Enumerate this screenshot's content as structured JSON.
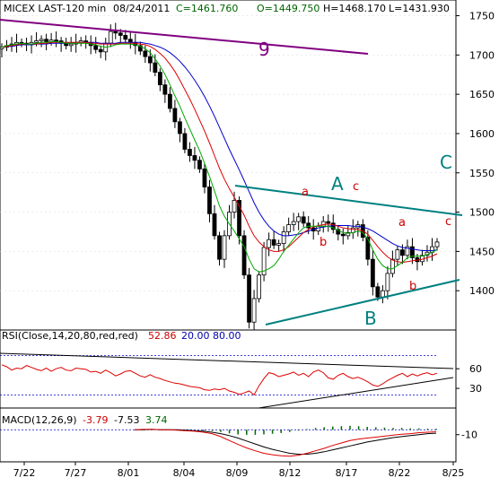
{
  "chart_data": {
    "type": "candlestick",
    "header": {
      "symbol": "MICEX LAST-120 min",
      "date": "08/24/2011",
      "close": "C=1461.760",
      "open": "O=1449.750",
      "high": "H=1468.170",
      "low": "L=1431.930"
    },
    "price_axis": {
      "ticks": [
        "1750",
        "1700",
        "1650",
        "1600",
        "1550",
        "1500",
        "1450",
        "1400"
      ],
      "ylim": [
        1350,
        1770
      ]
    },
    "x_ticks": [
      "7/22",
      "7/27",
      "8/01",
      "8/04",
      "8/09",
      "8/12",
      "8/17",
      "8/22",
      "8/25"
    ],
    "price_series": [
      1710,
      1712,
      1714,
      1716,
      1715,
      1713,
      1716,
      1718,
      1720,
      1717,
      1719,
      1718,
      1715,
      1712,
      1714,
      1716,
      1718,
      1716,
      1712,
      1707,
      1704,
      1715,
      1730,
      1728,
      1725,
      1720,
      1716,
      1712,
      1705,
      1698,
      1690,
      1678,
      1662,
      1650,
      1632,
      1615,
      1600,
      1580,
      1572,
      1566,
      1555,
      1532,
      1498,
      1470,
      1440,
      1470,
      1500,
      1515,
      1470,
      1420,
      1360,
      1390,
      1420,
      1455,
      1465,
      1458,
      1460,
      1475,
      1484,
      1488,
      1494,
      1486,
      1480,
      1476,
      1482,
      1488,
      1486,
      1478,
      1472,
      1470,
      1474,
      1480,
      1484,
      1468,
      1440,
      1405,
      1392,
      1400,
      1422,
      1440,
      1452,
      1445,
      1456,
      1442,
      1437,
      1445,
      1449,
      1456,
      1462
    ],
    "sma_green": [
      1710,
      1712,
      1713,
      1714,
      1715,
      1714,
      1714,
      1715,
      1716,
      1716,
      1717,
      1717,
      1716,
      1715,
      1715,
      1715,
      1715,
      1715,
      1714,
      1713,
      1711,
      1710,
      1711,
      1713,
      1714,
      1714,
      1714,
      1713,
      1711,
      1708,
      1703,
      1695,
      1686,
      1675,
      1662,
      1648,
      1635,
      1620,
      1606,
      1592,
      1578,
      1562,
      1545,
      1527,
      1508,
      1495,
      1485,
      1476,
      1466,
      1456,
      1440,
      1428,
      1424,
      1425,
      1428,
      1432,
      1440,
      1450,
      1458,
      1466,
      1474,
      1480,
      1482,
      1482,
      1482,
      1482,
      1482,
      1480,
      1477,
      1474,
      1473,
      1474,
      1476,
      1474,
      1466,
      1452,
      1440,
      1432,
      1428,
      1428,
      1432,
      1436,
      1442,
      1444,
      1444,
      1444,
      1446,
      1449,
      1452
    ],
    "sma_red": [
      1710,
      1711,
      1712,
      1713,
      1714,
      1714,
      1714,
      1714,
      1715,
      1715,
      1716,
      1716,
      1716,
      1716,
      1716,
      1716,
      1716,
      1716,
      1715,
      1715,
      1714,
      1714,
      1714,
      1714,
      1715,
      1715,
      1715,
      1715,
      1714,
      1713,
      1711,
      1707,
      1702,
      1696,
      1688,
      1679,
      1668,
      1656,
      1644,
      1631,
      1617,
      1603,
      1588,
      1572,
      1556,
      1542,
      1530,
      1519,
      1508,
      1496,
      1482,
      1470,
      1462,
      1456,
      1452,
      1450,
      1450,
      1452,
      1456,
      1462,
      1468,
      1474,
      1478,
      1481,
      1483,
      1484,
      1485,
      1484,
      1482,
      1480,
      1479,
      1478,
      1478,
      1476,
      1472,
      1464,
      1456,
      1449,
      1443,
      1439,
      1437,
      1436,
      1437,
      1438,
      1439,
      1440,
      1442,
      1444,
      1447
    ],
    "sma_blue": [
      1710,
      1711,
      1711,
      1712,
      1713,
      1713,
      1713,
      1714,
      1714,
      1714,
      1715,
      1715,
      1715,
      1715,
      1715,
      1716,
      1716,
      1716,
      1716,
      1716,
      1715,
      1715,
      1715,
      1715,
      1716,
      1716,
      1716,
      1716,
      1716,
      1715,
      1714,
      1712,
      1710,
      1707,
      1703,
      1698,
      1692,
      1685,
      1677,
      1668,
      1658,
      1647,
      1635,
      1622,
      1608,
      1594,
      1580,
      1567,
      1554,
      1540,
      1526,
      1512,
      1500,
      1490,
      1482,
      1476,
      1472,
      1470,
      1470,
      1471,
      1472,
      1474,
      1476,
      1478,
      1480,
      1481,
      1482,
      1483,
      1483,
      1483,
      1483,
      1482,
      1482,
      1481,
      1479,
      1476,
      1472,
      1468,
      1464,
      1460,
      1457,
      1455,
      1454,
      1453,
      1452,
      1451,
      1451,
      1451,
      1452
    ],
    "trendlines": [
      {
        "label": "9"
      },
      {
        "label": "C"
      },
      {
        "label": ""
      }
    ],
    "wave_labels": [
      "A",
      "B",
      "C",
      "a",
      "b",
      "c",
      "a",
      "b",
      "c"
    ],
    "rsi": {
      "label": "RSI(Close,14,20,80,red,red)",
      "value": "52.86",
      "lower": "20.00",
      "upper": "80.00",
      "ticks": [
        "60",
        "30"
      ],
      "series": [
        66,
        63,
        58,
        61,
        60,
        65,
        62,
        59,
        57,
        61,
        56,
        60,
        62,
        58,
        57,
        61,
        60,
        59,
        55,
        56,
        53,
        58,
        54,
        49,
        52,
        56,
        57,
        53,
        49,
        47,
        51,
        47,
        45,
        42,
        40,
        38,
        37,
        35,
        33,
        32,
        31,
        28,
        27,
        29,
        28,
        30,
        26,
        24,
        21,
        23,
        26,
        20,
        34,
        45,
        54,
        52,
        48,
        50,
        52,
        55,
        50,
        53,
        48,
        55,
        58,
        54,
        46,
        44,
        50,
        53,
        48,
        45,
        47,
        44,
        40,
        35,
        33,
        37,
        42,
        46,
        50,
        53,
        48,
        52,
        49,
        52,
        54,
        51,
        53
      ]
    },
    "macd": {
      "label": "MACD(12,26,9)",
      "v1": "-3.79",
      "v2": "-7.53",
      "v3": "3.74",
      "ticks": [
        "-10"
      ],
      "macd_series": [
        0,
        1,
        1,
        0,
        0,
        -1,
        -2,
        -3,
        -5,
        -8,
        -14,
        -22,
        -30,
        -37,
        -43,
        -48,
        -51,
        -53,
        -54,
        -52,
        -48,
        -43,
        -38,
        -32,
        -27,
        -22,
        -19,
        -17,
        -15,
        -13,
        -11,
        -9,
        -8,
        -6,
        -5,
        -4
      ],
      "signal_series": [
        0,
        0,
        1,
        0,
        0,
        0,
        -1,
        -2,
        -3,
        -5,
        -8,
        -12,
        -17,
        -23,
        -29,
        -35,
        -40,
        -44,
        -48,
        -50,
        -50,
        -48,
        -45,
        -41,
        -37,
        -33,
        -29,
        -25,
        -22,
        -19,
        -16,
        -14,
        -12,
        -10,
        -8,
        -7
      ]
    }
  }
}
